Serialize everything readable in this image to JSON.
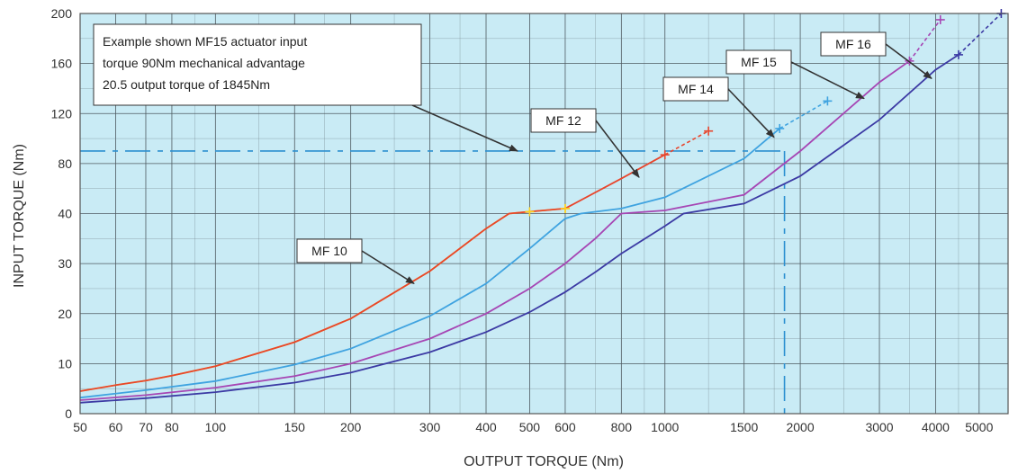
{
  "chart_data": {
    "type": "line",
    "xlabel": "OUTPUT TORQUE (Nm)",
    "ylabel": "INPUT TORQUE (Nm)",
    "x_tick_labels": [
      "50",
      "60",
      "70",
      "80",
      "100",
      "150",
      "200",
      "300",
      "400",
      "500",
      "600",
      "800",
      "1000",
      "1500",
      "2000",
      "3000",
      "4000",
      "5000"
    ],
    "y_tick_labels": [
      "0",
      "10",
      "20",
      "30",
      "40",
      "80",
      "120",
      "160",
      "200"
    ],
    "x_scale": "log",
    "xlim": [
      50,
      5800
    ],
    "y_scale": "piecewise",
    "ylim": [
      0,
      200
    ],
    "grid": true,
    "background_color": "#c9ebf5",
    "series": [
      {
        "name": "MF 10",
        "color": "#ffd21f",
        "x": [
          50,
          60,
          70,
          80,
          100,
          150,
          200,
          300,
          400,
          450,
          500,
          600
        ],
        "y": [
          4.5,
          5.7,
          6.6,
          7.6,
          9.5,
          14.3,
          19,
          28.5,
          37,
          40,
          41.5,
          44
        ],
        "end_marker": true
      },
      {
        "name": "MF 12",
        "color": "#e8452c",
        "x": [
          50,
          60,
          70,
          80,
          100,
          150,
          200,
          300,
          400,
          450,
          500,
          600,
          800,
          1000
        ],
        "y": [
          4.5,
          5.7,
          6.6,
          7.6,
          9.5,
          14.3,
          19,
          28.5,
          37,
          40,
          41.5,
          44,
          68,
          87
        ],
        "dashed_x": [
          1000,
          1250
        ],
        "dashed_y": [
          87,
          106
        ],
        "end_marker": true
      },
      {
        "name": "MF 14",
        "color": "#3fa3e0",
        "x": [
          50,
          70,
          100,
          150,
          200,
          300,
          400,
          500,
          600,
          650,
          800,
          1000,
          1500,
          1800
        ],
        "y": [
          3.2,
          4.7,
          6.5,
          9.8,
          13,
          19.5,
          26,
          33,
          39,
          40,
          44,
          53,
          84,
          108
        ],
        "dashed_x": [
          1800,
          2300
        ],
        "dashed_y": [
          108,
          130
        ],
        "end_marker": true
      },
      {
        "name": "MF 15",
        "color": "#a646b4",
        "x": [
          50,
          70,
          100,
          150,
          200,
          300,
          400,
          500,
          600,
          700,
          800,
          1000,
          1500,
          2000,
          3000,
          3500
        ],
        "y": [
          2.7,
          3.7,
          5.2,
          7.5,
          10,
          15,
          20,
          25,
          30,
          35,
          40,
          42.5,
          55,
          90,
          145,
          162
        ],
        "dashed_x": [
          3500,
          4100
        ],
        "dashed_y": [
          162,
          195
        ],
        "end_marker": true
      },
      {
        "name": "MF 16",
        "color": "#3c3aa4",
        "x": [
          50,
          70,
          100,
          150,
          200,
          300,
          400,
          500,
          600,
          700,
          800,
          1000,
          1100,
          1500,
          2000,
          3000,
          4000,
          4500
        ],
        "y": [
          2.2,
          3.1,
          4.3,
          6.2,
          8.2,
          12.3,
          16.3,
          20.3,
          24.3,
          28.3,
          32,
          37.5,
          40,
          48,
          70,
          115,
          155,
          167
        ],
        "dashed_x": [
          4500,
          5600
        ],
        "dashed_y": [
          167,
          200
        ],
        "end_marker": true
      }
    ],
    "example": {
      "input_torque": 90,
      "output_torque": 1845,
      "color": "#2b8fd0",
      "text_lines": [
        "Example shown MF15 actuator input",
        "torque 90Nm mechanical advantage",
        "20.5 output torque of 1845Nm"
      ]
    },
    "labels": [
      {
        "text": "MF 10",
        "target": "MF 10"
      },
      {
        "text": "MF 12",
        "target": "MF 12"
      },
      {
        "text": "MF 14",
        "target": "MF 14"
      },
      {
        "text": "MF 15",
        "target": "MF 15"
      },
      {
        "text": "MF 16",
        "target": "MF 16"
      }
    ]
  }
}
